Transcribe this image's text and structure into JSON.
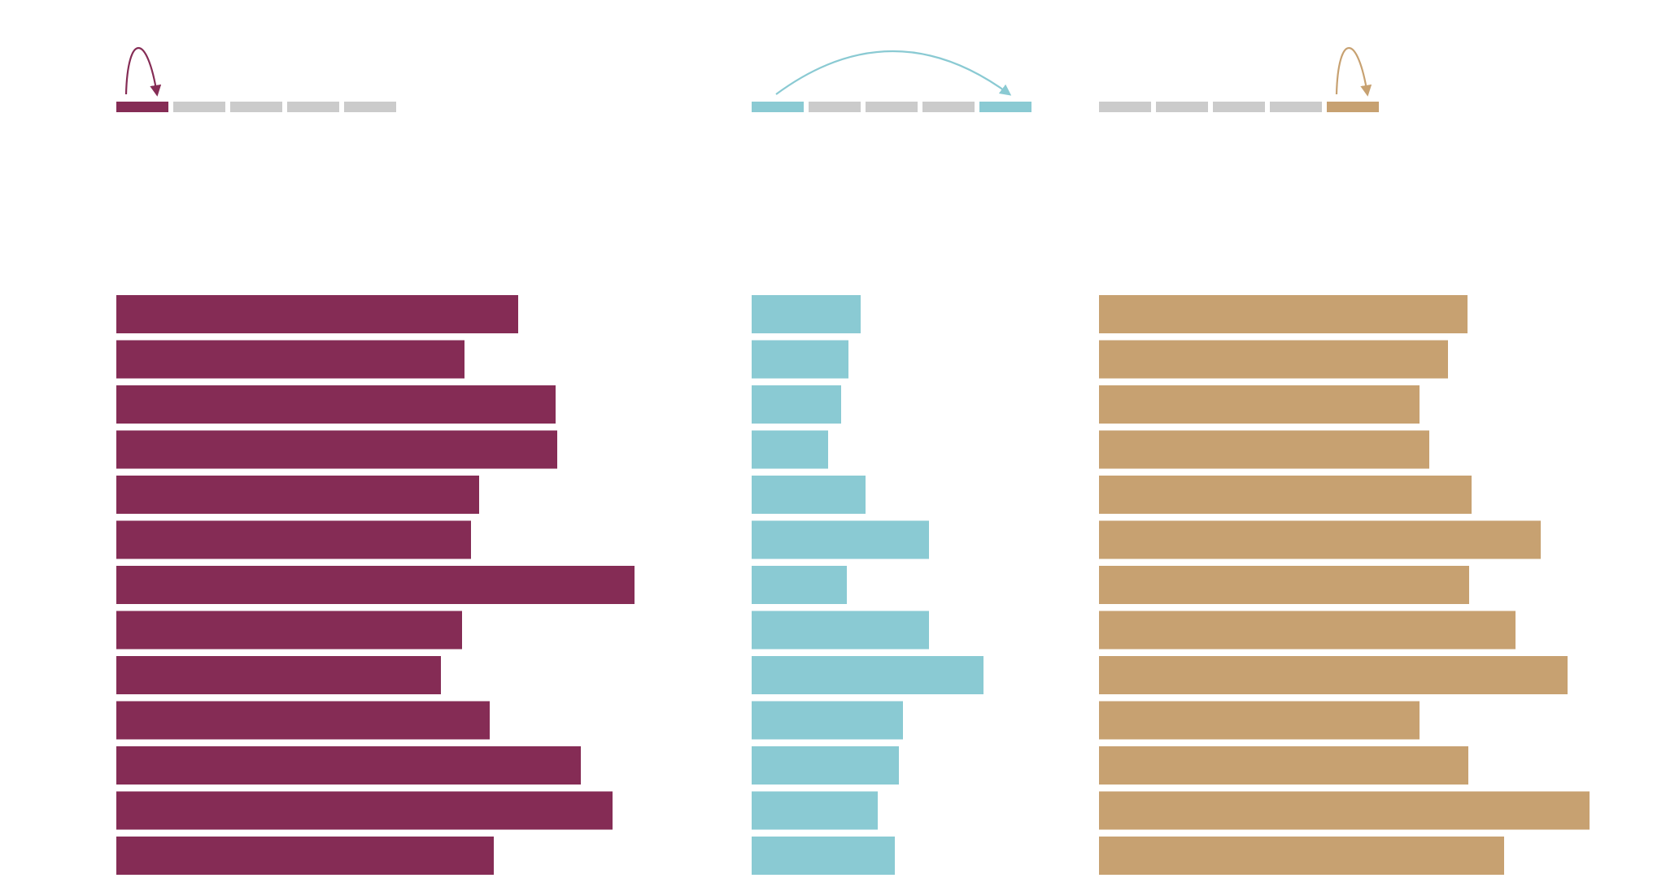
{
  "colors": {
    "inactive_segment": "#cbcbcb",
    "background": "#ffffff"
  },
  "chart_data": [
    {
      "type": "bar",
      "orientation": "horizontal",
      "color": "#852c55",
      "indicator": {
        "segments": 5,
        "highlighted": [
          1
        ],
        "arrow_from": 1,
        "arrow_to": 1,
        "arrow_type": "self-loop"
      },
      "values": [
        494,
        428,
        540,
        542,
        446,
        436,
        637,
        425,
        399,
        459,
        571,
        610,
        464
      ]
    },
    {
      "type": "bar",
      "orientation": "horizontal",
      "color": "#8acad3",
      "indicator": {
        "segments": 5,
        "highlighted": [
          1,
          5
        ],
        "arrow_from": 1,
        "arrow_to": 5,
        "arrow_type": "arc"
      },
      "values": [
        134,
        119,
        110,
        94,
        140,
        218,
        117,
        218,
        285,
        186,
        181,
        155,
        176
      ]
    },
    {
      "type": "bar",
      "orientation": "horizontal",
      "color": "#c7a171",
      "indicator": {
        "segments": 5,
        "highlighted": [
          5
        ],
        "arrow_from": 5,
        "arrow_to": 5,
        "arrow_type": "self-loop"
      },
      "values": [
        453,
        429,
        394,
        406,
        458,
        543,
        455,
        512,
        576,
        394,
        454,
        603,
        498
      ]
    }
  ]
}
